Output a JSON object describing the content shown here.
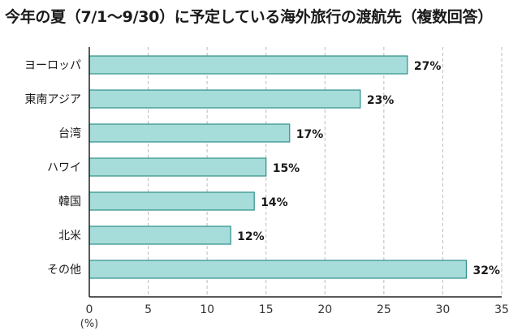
{
  "chart_data": {
    "type": "bar",
    "orientation": "horizontal",
    "title": "今年の夏（7/1～9/30）に予定している海外旅行の渡航先（複数回答）",
    "categories": [
      "ヨーロッパ",
      "東南アジア",
      "台湾",
      "ハワイ",
      "韓国",
      "北米",
      "その他"
    ],
    "values": [
      27,
      23,
      17,
      15,
      14,
      12,
      32
    ],
    "value_labels": [
      "27%",
      "23%",
      "17%",
      "15%",
      "14%",
      "12%",
      "32%"
    ],
    "xlim": [
      0,
      35
    ],
    "xticks": [
      0,
      5,
      10,
      15,
      20,
      25,
      30,
      35
    ],
    "xunit": "(%)",
    "grid": "vertical-dashed",
    "colors": {
      "bar_fill": "#a6dcd9",
      "bar_stroke": "#2f8f8c",
      "grid": "#bbbbbb",
      "axis": "#222222"
    }
  }
}
